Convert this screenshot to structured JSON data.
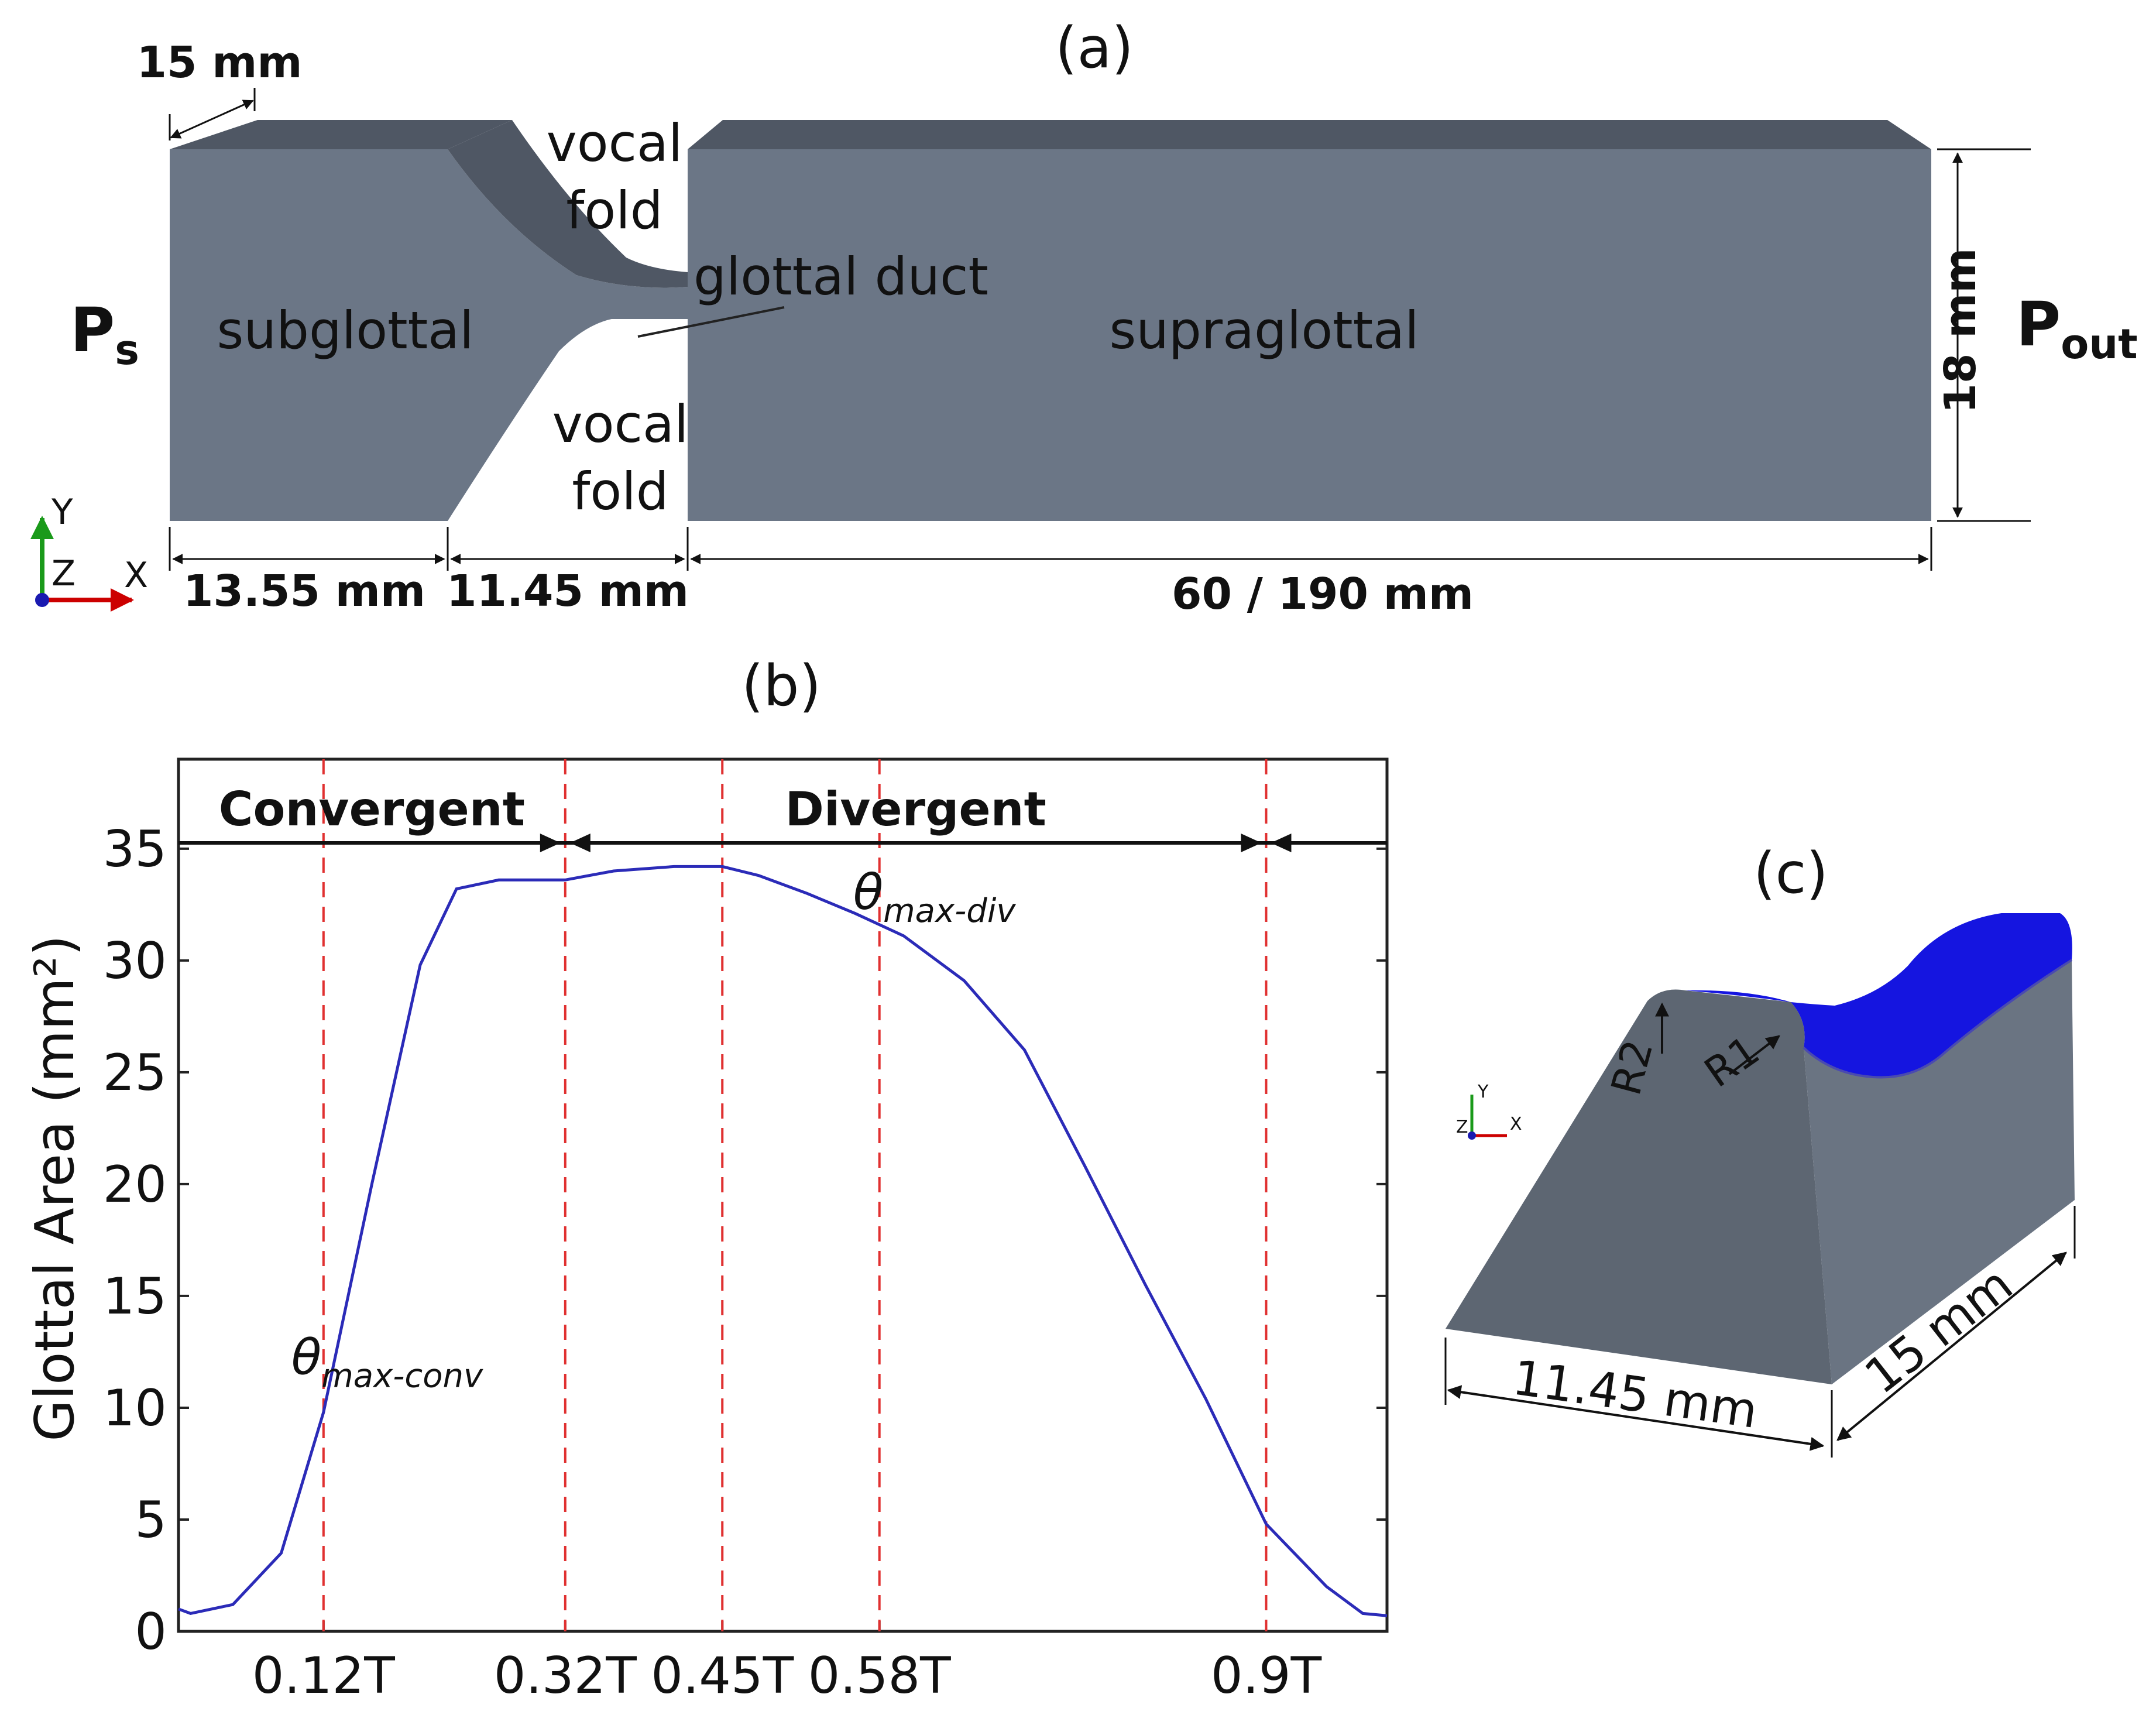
{
  "panel_a": {
    "label": "(a)",
    "left_pressure": {
      "main": "P",
      "sub": "s"
    },
    "right_pressure": {
      "main": "P",
      "sub": "out"
    },
    "regions": {
      "subglottal": "subglottal",
      "supraglottal": "supraglottal",
      "glottal_duct": "glottal duct",
      "vocal_fold_top": [
        "vocal",
        "fold"
      ],
      "vocal_fold_bottom": [
        "vocal",
        "fold"
      ]
    },
    "dimensions": {
      "depth": "15 mm",
      "height": "18 mm",
      "subglottal_length": "13.55 mm",
      "fold_length": "11.45 mm",
      "supraglottal_length": "60 / 190 mm"
    },
    "axes": {
      "y": "Y",
      "z": "Z",
      "x": "X"
    }
  },
  "panel_b": {
    "label": "(b)",
    "chart_data": {
      "type": "line",
      "title": "",
      "xlabel": "",
      "ylabel": "Glottal Area (mm²)",
      "xlim": [
        0,
        1
      ],
      "ylim": [
        0,
        39
      ],
      "yticks": [
        0,
        5,
        10,
        15,
        20,
        25,
        30,
        35
      ],
      "xticks": [
        {
          "value": 0.12,
          "label": "0.12T"
        },
        {
          "value": 0.32,
          "label": "0.32T"
        },
        {
          "value": 0.45,
          "label": "0.45T"
        },
        {
          "value": 0.58,
          "label": "0.58T"
        },
        {
          "value": 0.9,
          "label": "0.9T"
        }
      ],
      "series": [
        {
          "color": "#2b2bb8",
          "x": [
            0.0,
            0.01,
            0.045,
            0.085,
            0.12,
            0.16,
            0.2,
            0.23,
            0.265,
            0.3,
            0.32,
            0.36,
            0.41,
            0.45,
            0.48,
            0.52,
            0.56,
            0.6,
            0.65,
            0.7,
            0.75,
            0.8,
            0.85,
            0.9,
            0.95,
            0.98,
            1.0
          ],
          "y": [
            1.0,
            0.8,
            1.2,
            3.5,
            9.8,
            20.0,
            29.8,
            33.2,
            33.6,
            33.6,
            33.6,
            34.0,
            34.2,
            34.2,
            33.8,
            33.0,
            32.1,
            31.1,
            29.1,
            26.0,
            20.8,
            15.5,
            10.4,
            4.8,
            2.0,
            0.8,
            0.7
          ]
        }
      ],
      "vlines": [
        0.12,
        0.32,
        0.45,
        0.58,
        0.9
      ],
      "vline_color": "#e03030",
      "regions": [
        {
          "label": "Convergent",
          "from": 0.0,
          "to": 0.32
        },
        {
          "label": "Divergent",
          "from": 0.32,
          "to": 0.9
        }
      ],
      "annotations": [
        {
          "main": "θ",
          "sub": "max-conv",
          "x": 0.12
        },
        {
          "main": "θ",
          "sub": "max-div",
          "x": 0.58
        }
      ],
      "grid": false
    }
  },
  "panel_c": {
    "label": "(c)",
    "radii": [
      "R2",
      "R1"
    ],
    "dimensions": {
      "length": "11.45 mm",
      "depth": "15 mm"
    },
    "axes": {
      "y": "Y",
      "z": "Z",
      "x": "X"
    },
    "colors": {
      "body": "#5d6672",
      "top_surface": "#1515e0"
    }
  }
}
